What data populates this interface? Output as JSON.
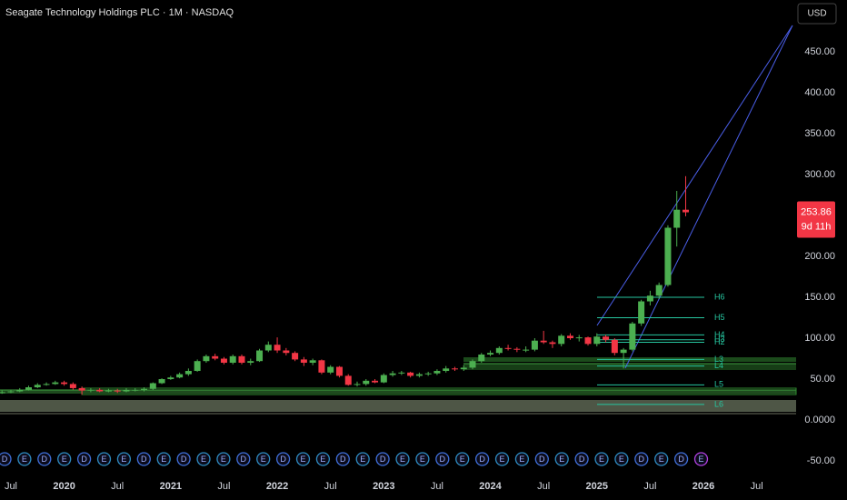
{
  "chart_data": {
    "type": "candlestick",
    "title": "Seagate Technology Holdings PLC · 1M · NASDAQ",
    "currency": "USD",
    "countdown": "9d 11h",
    "up_color": "#4caf50",
    "down_color": "#f23645",
    "pivot_color": "#26c6a0",
    "categories": [
      null,
      "Jul",
      null,
      null,
      null,
      null,
      null,
      "2020",
      null,
      null,
      null,
      null,
      null,
      "Jul",
      null,
      null,
      null,
      null,
      null,
      "2021",
      null,
      null,
      null,
      null,
      null,
      "Jul",
      null,
      null,
      null,
      null,
      null,
      "2022",
      null,
      null,
      null,
      null,
      null,
      "Jul",
      null,
      null,
      null,
      null,
      null,
      "2023",
      null,
      null,
      null,
      null,
      null,
      "Jul",
      null,
      null,
      null,
      null,
      null,
      "2024",
      null,
      null,
      null,
      null,
      null,
      "Jul",
      null,
      null,
      null,
      null,
      null,
      "2025",
      null,
      null,
      null,
      null,
      null,
      "Jul",
      null,
      null,
      null,
      null,
      null,
      "2026",
      null,
      null,
      null,
      null,
      null,
      "Jul"
    ],
    "open": [
      33,
      34,
      35,
      37,
      40,
      43,
      44,
      46,
      44,
      39,
      36,
      37,
      35,
      36,
      35,
      37,
      37,
      38,
      45,
      50,
      52,
      56,
      60,
      72,
      78,
      75,
      70,
      78,
      70,
      72,
      85,
      92,
      85,
      82,
      74,
      70,
      73,
      58,
      65,
      54,
      43,
      44,
      48,
      46,
      55,
      57,
      58,
      54,
      56,
      57,
      60,
      63,
      62,
      64,
      72,
      80,
      82,
      88,
      87,
      86,
      86,
      97,
      95,
      93,
      103,
      100,
      101,
      93,
      102,
      98,
      82,
      86,
      118,
      145,
      152,
      165,
      235,
      257,
      null,
      null,
      null,
      null,
      null,
      null,
      null,
      null
    ],
    "high": [
      36,
      37,
      39,
      42,
      45,
      46,
      48,
      48,
      46,
      41,
      39,
      39,
      38,
      38,
      39,
      39,
      40,
      46,
      51,
      54,
      58,
      63,
      74,
      80,
      81,
      77,
      80,
      80,
      75,
      87,
      96,
      101,
      88,
      84,
      77,
      75,
      74,
      67,
      66,
      56,
      47,
      50,
      50,
      57,
      60,
      60,
      59,
      58,
      59,
      62,
      66,
      65,
      67,
      74,
      82,
      85,
      90,
      92,
      89,
      90,
      100,
      109,
      97,
      105,
      106,
      104,
      102,
      106,
      104,
      100,
      88,
      120,
      147,
      158,
      168,
      238,
      280,
      298,
      null,
      null,
      null,
      null,
      null,
      null,
      null,
      null
    ],
    "low": [
      32,
      33,
      34,
      36,
      39,
      42,
      43,
      42,
      37,
      31,
      34,
      34,
      34,
      33,
      34,
      35,
      35,
      37,
      44,
      49,
      51,
      54,
      59,
      70,
      73,
      68,
      68,
      68,
      67,
      71,
      83,
      82,
      79,
      72,
      66,
      67,
      56,
      56,
      52,
      42,
      41,
      42,
      45,
      45,
      53,
      55,
      52,
      52,
      54,
      55,
      58,
      60,
      60,
      62,
      70,
      78,
      80,
      85,
      83,
      83,
      84,
      93,
      88,
      90,
      98,
      96,
      91,
      90,
      95,
      79,
      63,
      84,
      115,
      140,
      148,
      163,
      212,
      249,
      null,
      null,
      null,
      null,
      null,
      null,
      null,
      null
    ],
    "close": [
      34,
      35,
      37,
      40,
      43,
      44,
      46,
      44,
      39,
      36,
      37,
      35,
      36,
      35,
      37,
      37,
      38,
      45,
      50,
      52,
      56,
      60,
      72,
      78,
      75,
      70,
      78,
      70,
      72,
      85,
      92,
      85,
      82,
      74,
      70,
      73,
      58,
      65,
      54,
      43,
      44,
      48,
      46,
      55,
      57,
      58,
      54,
      56,
      57,
      60,
      63,
      62,
      64,
      72,
      80,
      82,
      88,
      87,
      86,
      86,
      97,
      95,
      93,
      103,
      100,
      101,
      93,
      102,
      98,
      82,
      86,
      118,
      145,
      152,
      165,
      235,
      257,
      253.86,
      null,
      null,
      null,
      null,
      null,
      null,
      null,
      null
    ],
    "ylim": [
      -73.3,
      513.3
    ],
    "yticks": [
      {
        "value": 450,
        "label": "450.00"
      },
      {
        "value": 400,
        "label": "400.00"
      },
      {
        "value": 350,
        "label": "350.00"
      },
      {
        "value": 300,
        "label": "300.00"
      },
      {
        "value": 200,
        "label": "200.00"
      },
      {
        "value": 150,
        "label": "150.00"
      },
      {
        "value": 100,
        "label": "100.00"
      },
      {
        "value": 50,
        "label": "50.00"
      },
      {
        "value": 0,
        "label": "0.0000"
      },
      {
        "value": -50,
        "label": "-50.00"
      }
    ],
    "pivots": [
      {
        "name": "H6",
        "value": 150
      },
      {
        "name": "H5",
        "value": 125
      },
      {
        "name": "H4",
        "value": 104
      },
      {
        "name": "H3",
        "value": 98
      },
      {
        "name": "H2",
        "value": 95
      },
      {
        "name": "L3",
        "value": 74
      },
      {
        "name": "L4",
        "value": 66
      },
      {
        "name": "L5",
        "value": 43
      },
      {
        "name": "L6",
        "value": 19
      }
    ],
    "event_markers": [
      "D",
      "E",
      "D",
      "E",
      "D",
      "E",
      "E",
      "D",
      "E",
      "D",
      "E",
      "E",
      "D",
      "E",
      "D",
      "E",
      "E",
      "D",
      "E",
      "D",
      "E",
      "E",
      "D",
      "E",
      "D",
      "E",
      "E",
      "D",
      "E",
      "D",
      "E",
      "E",
      "D",
      "E",
      "D",
      "E"
    ]
  }
}
